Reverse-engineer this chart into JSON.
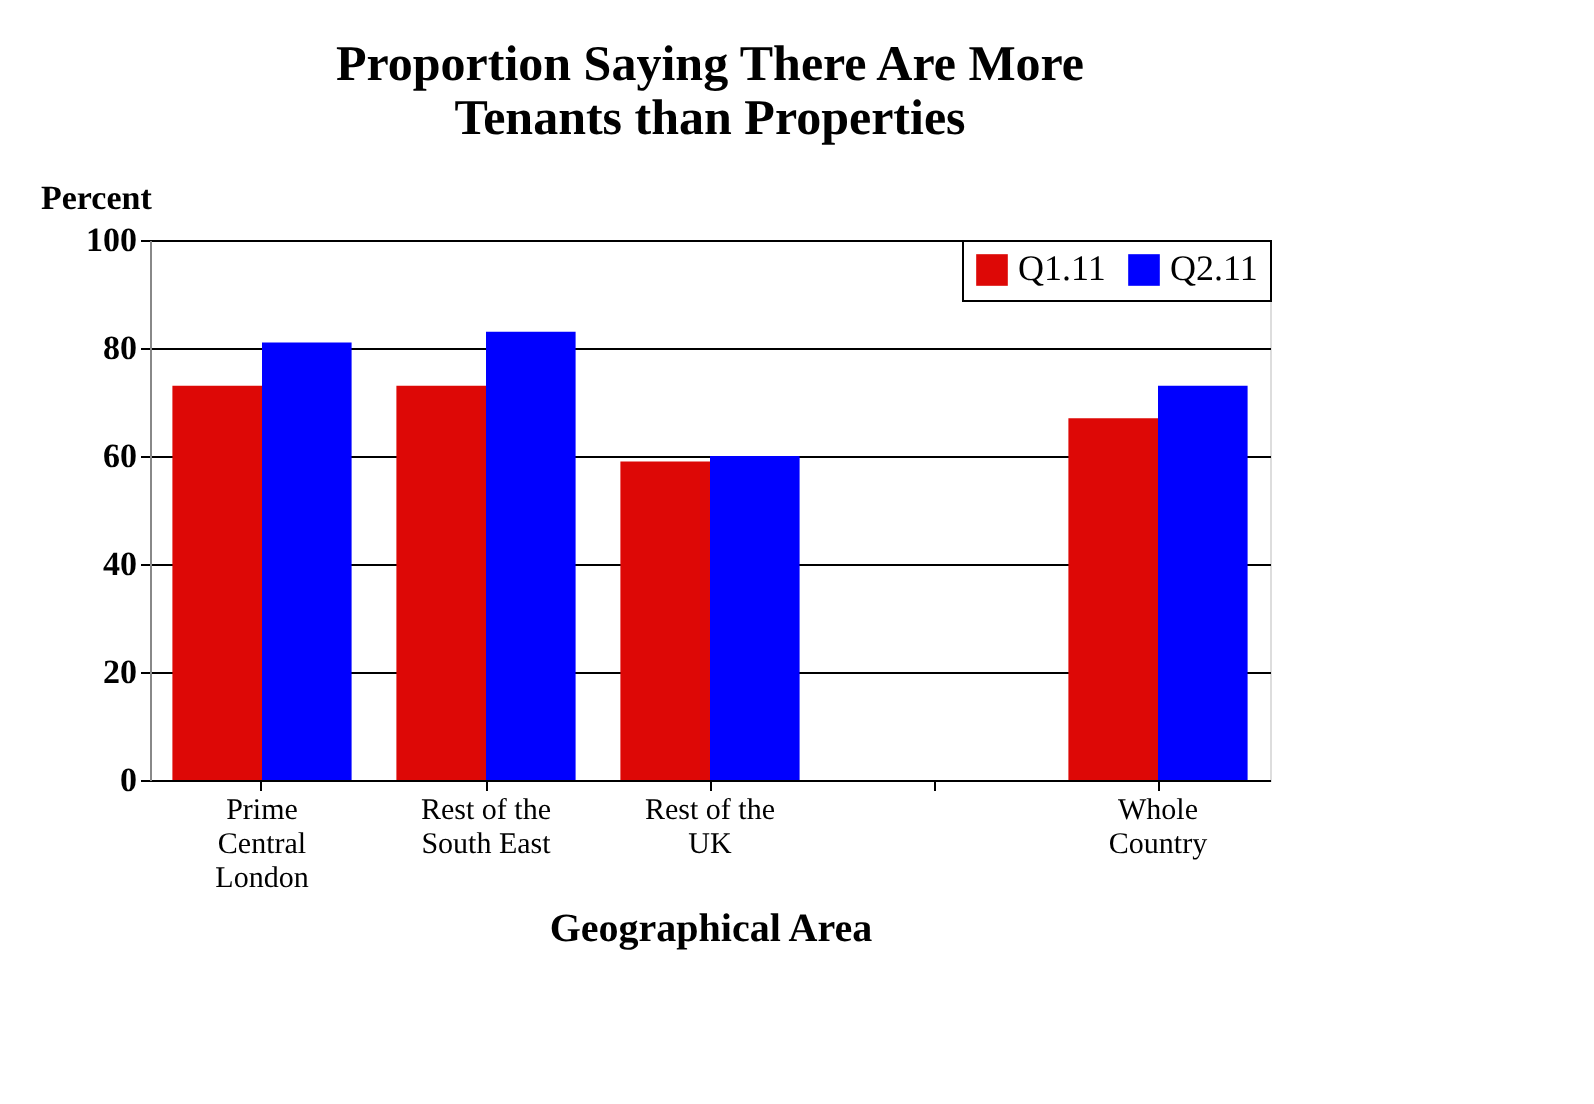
{
  "chart_data": {
    "type": "bar",
    "title": "Proportion Saying There Are More Tenants than Properties",
    "xlabel": "Geographical Area",
    "ylabel": "Percent",
    "categories": [
      "Prime Central London",
      "Rest of the South East",
      "Rest of the UK",
      null,
      "Whole Country"
    ],
    "series": [
      {
        "name": "Q1.11",
        "color": "#dd0806",
        "values": [
          73,
          73,
          59,
          null,
          67
        ]
      },
      {
        "name": "Q2.11",
        "color": "#0000ff",
        "values": [
          81,
          83,
          60,
          null,
          73
        ]
      }
    ],
    "ylim": [
      0,
      100
    ],
    "yticks": [
      0,
      20,
      40,
      60,
      80,
      100
    ],
    "grid": "y",
    "legend": "top right"
  }
}
